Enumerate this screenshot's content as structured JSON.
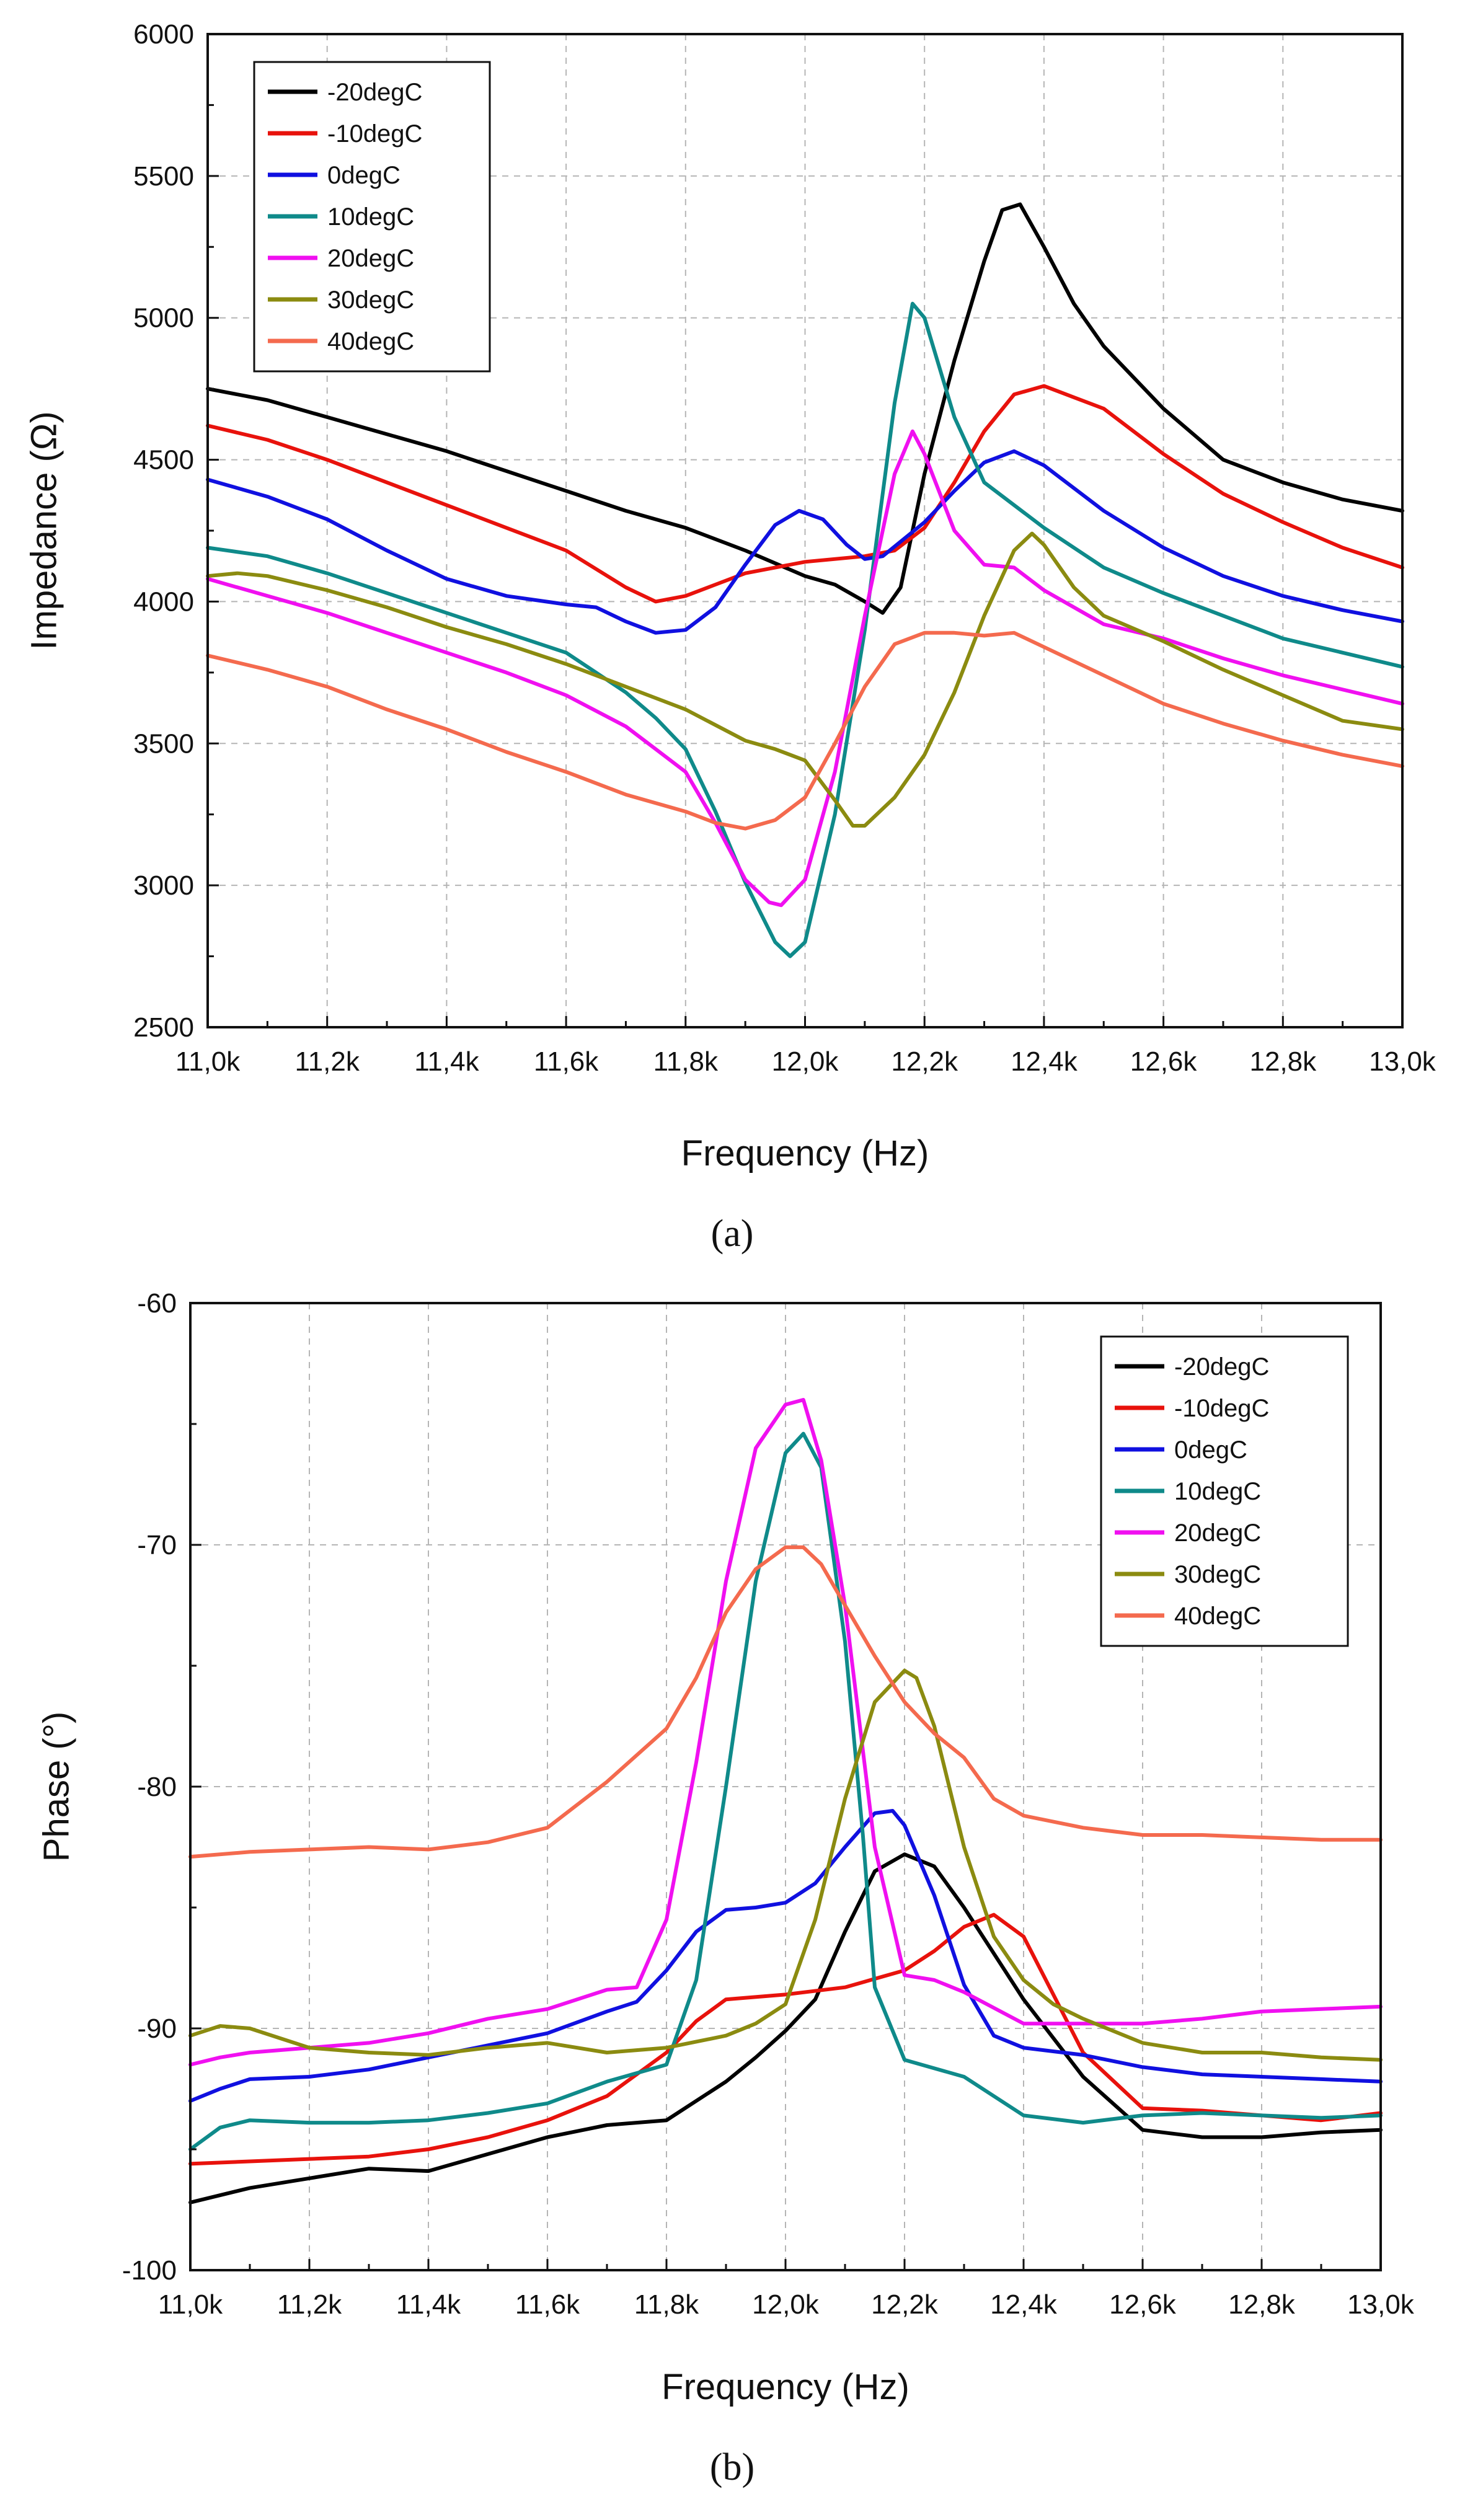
{
  "chart_data": [
    {
      "type": "line",
      "panel_label": "(a)",
      "title": "",
      "xlabel": "Frequency (Hz)",
      "ylabel": "Impedance (Ω)",
      "xlim": [
        11000,
        13000
      ],
      "ylim": [
        2500,
        6000
      ],
      "x_ticks": [
        11000,
        11200,
        11400,
        11600,
        11800,
        12000,
        12200,
        12400,
        12600,
        12800,
        13000
      ],
      "x_tick_labels": [
        "11,0k",
        "11,2k",
        "11,4k",
        "11,6k",
        "11,8k",
        "12,0k",
        "12,2k",
        "12,4k",
        "12,6k",
        "12,8k",
        "13,0k"
      ],
      "y_ticks": [
        2500,
        3000,
        3500,
        4000,
        4500,
        5000,
        5500,
        6000
      ],
      "y_tick_labels": [
        "2500",
        "3000",
        "3500",
        "4000",
        "4500",
        "5000",
        "5500",
        "6000"
      ],
      "grid": true,
      "legend_position": "top-left",
      "series": [
        {
          "name": "-20degC",
          "color": "#000000",
          "x": [
            11000,
            11100,
            11200,
            11300,
            11400,
            11500,
            11600,
            11700,
            11800,
            11900,
            12000,
            12050,
            12100,
            12130,
            12160,
            12200,
            12250,
            12300,
            12330,
            12360,
            12400,
            12450,
            12500,
            12600,
            12700,
            12800,
            12900,
            13000
          ],
          "y": [
            4750,
            4710,
            4650,
            4590,
            4530,
            4460,
            4390,
            4320,
            4260,
            4180,
            4090,
            4060,
            4000,
            3960,
            4050,
            4450,
            4850,
            5200,
            5380,
            5400,
            5250,
            5050,
            4900,
            4680,
            4500,
            4420,
            4360,
            4320
          ]
        },
        {
          "name": "-10degC",
          "color": "#e8120c",
          "x": [
            11000,
            11100,
            11200,
            11300,
            11400,
            11500,
            11600,
            11700,
            11750,
            11800,
            11850,
            11900,
            12000,
            12100,
            12150,
            12200,
            12250,
            12300,
            12350,
            12400,
            12450,
            12500,
            12600,
            12700,
            12800,
            12900,
            13000
          ],
          "y": [
            4620,
            4570,
            4500,
            4420,
            4340,
            4260,
            4180,
            4050,
            4000,
            4020,
            4060,
            4100,
            4140,
            4160,
            4180,
            4260,
            4420,
            4600,
            4730,
            4760,
            4720,
            4680,
            4520,
            4380,
            4280,
            4190,
            4120
          ]
        },
        {
          "name": "0degC",
          "color": "#1010e0",
          "x": [
            11000,
            11100,
            11200,
            11300,
            11400,
            11500,
            11600,
            11650,
            11700,
            11750,
            11800,
            11850,
            11900,
            11950,
            11990,
            12030,
            12070,
            12100,
            12130,
            12200,
            12250,
            12300,
            12350,
            12400,
            12500,
            12600,
            12700,
            12800,
            12900,
            13000
          ],
          "y": [
            4430,
            4370,
            4290,
            4180,
            4080,
            4020,
            3990,
            3980,
            3930,
            3890,
            3900,
            3980,
            4130,
            4270,
            4320,
            4290,
            4200,
            4150,
            4160,
            4280,
            4390,
            4490,
            4530,
            4480,
            4320,
            4190,
            4090,
            4020,
            3970,
            3930
          ]
        },
        {
          "name": "10degC",
          "color": "#0f8a8a",
          "x": [
            11000,
            11100,
            11200,
            11300,
            11400,
            11500,
            11600,
            11700,
            11750,
            11800,
            11850,
            11900,
            11950,
            11975,
            12000,
            12050,
            12100,
            12150,
            12180,
            12200,
            12250,
            12300,
            12350,
            12400,
            12500,
            12600,
            12700,
            12800,
            12900,
            13000
          ],
          "y": [
            4190,
            4160,
            4100,
            4030,
            3960,
            3890,
            3820,
            3680,
            3590,
            3480,
            3260,
            3010,
            2800,
            2750,
            2800,
            3250,
            3900,
            4700,
            5050,
            5000,
            4650,
            4420,
            4340,
            4260,
            4120,
            4030,
            3950,
            3870,
            3820,
            3770
          ]
        },
        {
          "name": "20degC",
          "color": "#f010f0",
          "x": [
            11000,
            11100,
            11200,
            11300,
            11400,
            11500,
            11600,
            11700,
            11750,
            11800,
            11850,
            11900,
            11940,
            11960,
            12000,
            12050,
            12100,
            12150,
            12180,
            12200,
            12250,
            12300,
            12350,
            12400,
            12500,
            12600,
            12700,
            12800,
            12900,
            13000
          ],
          "y": [
            4080,
            4020,
            3960,
            3890,
            3820,
            3750,
            3670,
            3560,
            3480,
            3400,
            3220,
            3020,
            2940,
            2930,
            3020,
            3400,
            3950,
            4450,
            4600,
            4520,
            4250,
            4130,
            4120,
            4040,
            3920,
            3870,
            3800,
            3740,
            3690,
            3640
          ]
        },
        {
          "name": "30degC",
          "color": "#8b8b10",
          "x": [
            11000,
            11050,
            11100,
            11200,
            11300,
            11400,
            11500,
            11600,
            11700,
            11800,
            11900,
            11950,
            12000,
            12050,
            12080,
            12100,
            12150,
            12200,
            12250,
            12300,
            12350,
            12380,
            12400,
            12450,
            12500,
            12600,
            12700,
            12800,
            12900,
            13000
          ],
          "y": [
            4090,
            4100,
            4090,
            4040,
            3980,
            3910,
            3850,
            3780,
            3700,
            3620,
            3510,
            3480,
            3440,
            3300,
            3210,
            3210,
            3310,
            3460,
            3680,
            3950,
            4180,
            4240,
            4200,
            4050,
            3950,
            3860,
            3760,
            3670,
            3580,
            3550
          ]
        },
        {
          "name": "40degC",
          "color": "#f46a4e",
          "x": [
            11000,
            11100,
            11200,
            11300,
            11400,
            11500,
            11600,
            11700,
            11800,
            11850,
            11900,
            11950,
            12000,
            12050,
            12100,
            12150,
            12200,
            12250,
            12300,
            12350,
            12400,
            12500,
            12600,
            12700,
            12800,
            12900,
            13000
          ],
          "y": [
            3810,
            3760,
            3700,
            3620,
            3550,
            3470,
            3400,
            3320,
            3260,
            3220,
            3200,
            3230,
            3310,
            3500,
            3700,
            3850,
            3890,
            3890,
            3880,
            3890,
            3840,
            3740,
            3640,
            3570,
            3510,
            3460,
            3420
          ]
        }
      ]
    },
    {
      "type": "line",
      "panel_label": "(b)",
      "title": "",
      "xlabel": "Frequency (Hz)",
      "ylabel": "Phase (°)",
      "xlim": [
        11000,
        13000
      ],
      "ylim": [
        -100,
        -60
      ],
      "x_ticks": [
        11000,
        11200,
        11400,
        11600,
        11800,
        12000,
        12200,
        12400,
        12600,
        12800,
        13000
      ],
      "x_tick_labels": [
        "11,0k",
        "11,2k",
        "11,4k",
        "11,6k",
        "11,8k",
        "12,0k",
        "12,2k",
        "12,4k",
        "12,6k",
        "12,8k",
        "13,0k"
      ],
      "y_ticks": [
        -100,
        -90,
        -80,
        -70,
        -60
      ],
      "y_tick_labels": [
        "-100",
        "-90",
        "-80",
        "-70",
        "-60"
      ],
      "grid": true,
      "legend_position": "top-right",
      "series": [
        {
          "name": "-20degC",
          "color": "#000000",
          "x": [
            11000,
            11100,
            11200,
            11300,
            11400,
            11500,
            11600,
            11700,
            11800,
            11900,
            11950,
            12000,
            12050,
            12100,
            12150,
            12200,
            12250,
            12300,
            12400,
            12500,
            12600,
            12700,
            12800,
            12900,
            13000
          ],
          "y": [
            -97.2,
            -96.6,
            -96.2,
            -95.8,
            -95.9,
            -95.2,
            -94.5,
            -94.0,
            -93.8,
            -92.2,
            -91.2,
            -90.1,
            -88.8,
            -86.0,
            -83.5,
            -82.8,
            -83.3,
            -85.0,
            -88.8,
            -92.0,
            -94.2,
            -94.5,
            -94.5,
            -94.3,
            -94.2
          ]
        },
        {
          "name": "-10degC",
          "color": "#e8120c",
          "x": [
            11000,
            11100,
            11200,
            11300,
            11400,
            11500,
            11600,
            11700,
            11800,
            11850,
            11900,
            12000,
            12100,
            12200,
            12250,
            12300,
            12350,
            12400,
            12450,
            12500,
            12600,
            12700,
            12800,
            12900,
            13000
          ],
          "y": [
            -95.6,
            -95.5,
            -95.4,
            -95.3,
            -95.0,
            -94.5,
            -93.8,
            -92.8,
            -91.0,
            -89.7,
            -88.8,
            -88.6,
            -88.3,
            -87.6,
            -86.8,
            -85.8,
            -85.3,
            -86.2,
            -88.6,
            -91.0,
            -93.3,
            -93.4,
            -93.6,
            -93.8,
            -93.5
          ]
        },
        {
          "name": "0degC",
          "color": "#1010e0",
          "x": [
            11000,
            11050,
            11100,
            11200,
            11300,
            11400,
            11500,
            11600,
            11700,
            11750,
            11800,
            11850,
            11900,
            11950,
            12000,
            12050,
            12100,
            12150,
            12180,
            12200,
            12250,
            12300,
            12350,
            12400,
            12500,
            12600,
            12700,
            12800,
            12900,
            13000
          ],
          "y": [
            -93.0,
            -92.5,
            -92.1,
            -92.0,
            -91.7,
            -91.2,
            -90.7,
            -90.2,
            -89.3,
            -88.9,
            -87.6,
            -86.0,
            -85.1,
            -85.0,
            -84.8,
            -84.0,
            -82.5,
            -81.1,
            -81.0,
            -81.6,
            -84.5,
            -88.2,
            -90.3,
            -90.8,
            -91.1,
            -91.6,
            -91.9,
            -92.0,
            -92.1,
            -92.2
          ]
        },
        {
          "name": "10degC",
          "color": "#0f8a8a",
          "x": [
            11000,
            11050,
            11100,
            11200,
            11300,
            11400,
            11500,
            11600,
            11700,
            11800,
            11850,
            11900,
            11950,
            12000,
            12030,
            12060,
            12100,
            12130,
            12150,
            12200,
            12300,
            12400,
            12500,
            12600,
            12700,
            12800,
            12900,
            13000
          ],
          "y": [
            -95.0,
            -94.1,
            -93.8,
            -93.9,
            -93.9,
            -93.8,
            -93.5,
            -93.1,
            -92.2,
            -91.5,
            -88.0,
            -80.0,
            -71.5,
            -66.2,
            -65.4,
            -66.8,
            -74.0,
            -82.0,
            -88.3,
            -91.3,
            -92.0,
            -93.6,
            -93.9,
            -93.6,
            -93.5,
            -93.6,
            -93.7,
            -93.6
          ]
        },
        {
          "name": "20degC",
          "color": "#f010f0",
          "x": [
            11000,
            11050,
            11100,
            11200,
            11300,
            11400,
            11500,
            11600,
            11700,
            11750,
            11800,
            11850,
            11900,
            11950,
            12000,
            12030,
            12060,
            12100,
            12150,
            12200,
            12250,
            12300,
            12400,
            12500,
            12600,
            12700,
            12800,
            12900,
            13000
          ],
          "y": [
            -91.5,
            -91.2,
            -91.0,
            -90.8,
            -90.6,
            -90.2,
            -89.6,
            -89.2,
            -88.4,
            -88.3,
            -85.5,
            -79.0,
            -71.5,
            -66.0,
            -64.2,
            -64.0,
            -66.5,
            -72.5,
            -82.5,
            -87.8,
            -88.0,
            -88.5,
            -89.8,
            -89.8,
            -89.8,
            -89.6,
            -89.3,
            -89.2,
            -89.1
          ]
        },
        {
          "name": "30degC",
          "color": "#8b8b10",
          "x": [
            11000,
            11050,
            11100,
            11150,
            11200,
            11300,
            11400,
            11500,
            11600,
            11700,
            11800,
            11900,
            11950,
            12000,
            12050,
            12100,
            12150,
            12200,
            12220,
            12250,
            12300,
            12350,
            12400,
            12450,
            12500,
            12600,
            12700,
            12800,
            12900,
            13000
          ],
          "y": [
            -90.3,
            -89.9,
            -90.0,
            -90.4,
            -90.8,
            -91.0,
            -91.1,
            -90.8,
            -90.6,
            -91.0,
            -90.8,
            -90.3,
            -89.8,
            -89.0,
            -85.5,
            -80.5,
            -76.5,
            -75.2,
            -75.5,
            -77.5,
            -82.5,
            -86.2,
            -88.0,
            -89.0,
            -89.6,
            -90.6,
            -91.0,
            -91.0,
            -91.2,
            -91.3
          ]
        },
        {
          "name": "40degC",
          "color": "#f46a4e",
          "x": [
            11000,
            11100,
            11200,
            11300,
            11400,
            11500,
            11600,
            11700,
            11800,
            11850,
            11900,
            11950,
            12000,
            12030,
            12060,
            12100,
            12150,
            12200,
            12250,
            12300,
            12350,
            12400,
            12500,
            12600,
            12700,
            12800,
            12900,
            13000
          ],
          "y": [
            -82.9,
            -82.7,
            -82.6,
            -82.5,
            -82.6,
            -82.3,
            -81.7,
            -79.8,
            -77.6,
            -75.5,
            -72.8,
            -71.0,
            -70.1,
            -70.1,
            -70.8,
            -72.5,
            -74.6,
            -76.5,
            -77.8,
            -78.8,
            -80.5,
            -81.2,
            -81.7,
            -82.0,
            -82.0,
            -82.1,
            -82.2,
            -82.2
          ]
        }
      ]
    }
  ]
}
